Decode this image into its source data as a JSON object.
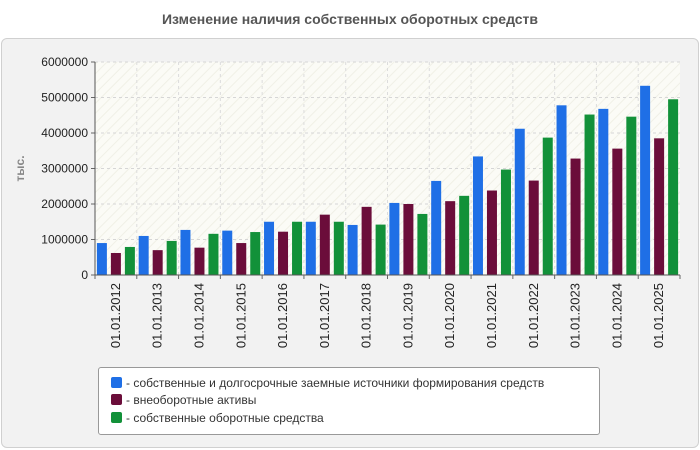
{
  "chart_data": {
    "type": "bar",
    "title": "Изменение наличия собственных оборотных средств",
    "xlabel": "",
    "ylabel": "тыс.",
    "ylim": [
      0,
      6000000
    ],
    "yticks": [
      0,
      1000000,
      2000000,
      3000000,
      4000000,
      5000000,
      6000000
    ],
    "ytick_labels": [
      "0",
      "1000000",
      "2000000",
      "3000000",
      "4000000",
      "5000000",
      "6000000"
    ],
    "grid": true,
    "legend_position": "bottom",
    "categories": [
      "01.01.2012",
      "01.01.2013",
      "01.01.2014",
      "01.01.2015",
      "01.01.2016",
      "01.01.2017",
      "01.01.2018",
      "01.01.2019",
      "01.01.2020",
      "01.01.2021",
      "01.01.2022",
      "01.01.2023",
      "01.01.2024",
      "01.01.2025"
    ],
    "series": [
      {
        "name": "собственные и долгосрочные заемные источники формирования средств",
        "legend_label": "- собственные и долгосрочные заемные источники формирования средств",
        "color": "#1f6fe6",
        "values": [
          900000,
          1100000,
          1270000,
          1250000,
          1500000,
          1500000,
          1410000,
          2030000,
          2650000,
          3340000,
          4120000,
          4780000,
          4680000,
          5330000
        ]
      },
      {
        "name": "внеоборотные активы",
        "legend_label": "- внеоборотные активы",
        "color": "#6b0d3a",
        "values": [
          620000,
          700000,
          770000,
          900000,
          1220000,
          1700000,
          1920000,
          2000000,
          2080000,
          2380000,
          2660000,
          3280000,
          3560000,
          3850000
        ]
      },
      {
        "name": "собственные оборотные средства",
        "legend_label": "- собственные оборотные средства",
        "color": "#129139",
        "values": [
          790000,
          960000,
          1160000,
          1210000,
          1500000,
          1500000,
          1420000,
          1720000,
          2230000,
          2970000,
          3870000,
          4520000,
          4460000,
          4950000
        ]
      }
    ]
  }
}
